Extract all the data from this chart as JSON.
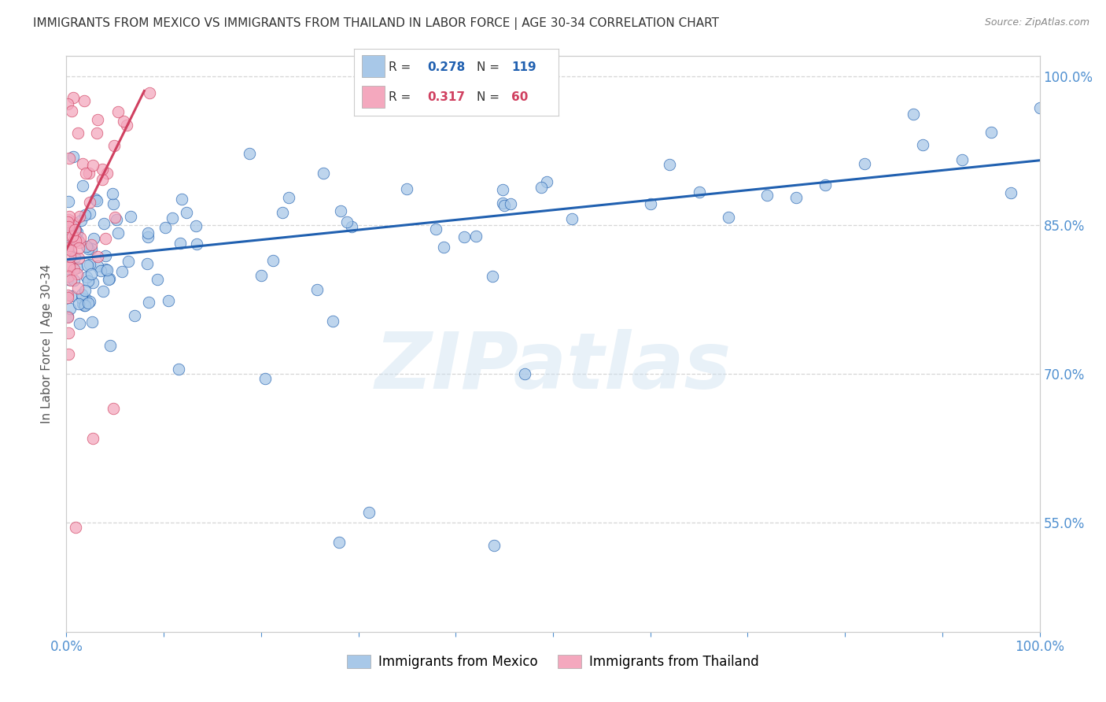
{
  "title": "IMMIGRANTS FROM MEXICO VS IMMIGRANTS FROM THAILAND IN LABOR FORCE | AGE 30-34 CORRELATION CHART",
  "source": "Source: ZipAtlas.com",
  "ylabel": "In Labor Force | Age 30-34",
  "watermark": "ZIPatlas",
  "mexico_R": 0.278,
  "mexico_N": 119,
  "thailand_R": 0.317,
  "thailand_N": 60,
  "mexico_color": "#a8c8e8",
  "thailand_color": "#f4a8be",
  "mexico_line_color": "#2060b0",
  "thailand_line_color": "#d04060",
  "legend_mexico": "Immigrants from Mexico",
  "legend_thailand": "Immigrants from Thailand",
  "xlim": [
    0,
    1.0
  ],
  "ylim": [
    0.44,
    1.02
  ],
  "xtick_left": "0.0%",
  "xtick_right": "100.0%",
  "yticks": [
    0.55,
    0.7,
    0.85,
    1.0
  ],
  "yticklabels": [
    "55.0%",
    "70.0%",
    "85.0%",
    "100.0%"
  ],
  "bg_color": "#ffffff",
  "grid_color": "#cccccc",
  "axis_color": "#cccccc",
  "title_color": "#333333",
  "tick_color": "#5090d0",
  "watermark_color": "#cce0f0",
  "watermark_alpha": 0.45,
  "mexico_trend_x0": 0.0,
  "mexico_trend_y0": 0.815,
  "mexico_trend_x1": 1.0,
  "mexico_trend_y1": 0.915,
  "thailand_trend_x0": 0.0,
  "thailand_trend_y0": 0.825,
  "thailand_trend_x1": 0.08,
  "thailand_trend_y1": 0.985
}
